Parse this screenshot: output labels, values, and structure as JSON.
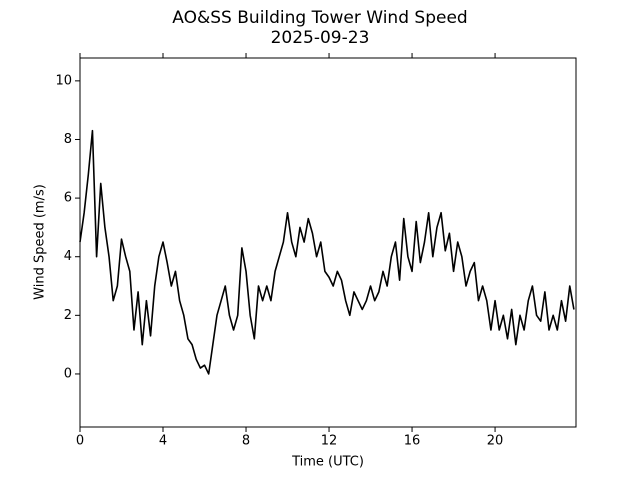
{
  "chart_data": {
    "type": "line",
    "title": "AO&SS Building Tower Wind Speed",
    "subtitle": "2025-09-23",
    "x_label": "Time (UTC)",
    "y_label": "Wind Speed (m/s)",
    "x": [
      0,
      0.2,
      0.4,
      0.6,
      0.8,
      1,
      1.2,
      1.4,
      1.6,
      1.8,
      2,
      2.2,
      2.4,
      2.6,
      2.8,
      3,
      3.2,
      3.4,
      3.6,
      3.8,
      4,
      4.2,
      4.4,
      4.6,
      4.8,
      5,
      5.2,
      5.4,
      5.6,
      5.8,
      6,
      6.2,
      6.4,
      6.6,
      6.8,
      7,
      7.2,
      7.4,
      7.6,
      7.8,
      8,
      8.2,
      8.4,
      8.6,
      8.8,
      9,
      9.2,
      9.4,
      9.6,
      9.8,
      10,
      10.2,
      10.4,
      10.6,
      10.8,
      11,
      11.2,
      11.4,
      11.6,
      11.8,
      12,
      12.2,
      12.4,
      12.6,
      12.8,
      13,
      13.2,
      13.4,
      13.6,
      13.8,
      14,
      14.2,
      14.4,
      14.6,
      14.8,
      15,
      15.2,
      15.4,
      15.6,
      15.8,
      16,
      16.2,
      16.4,
      16.6,
      16.8,
      17,
      17.2,
      17.4,
      17.6,
      17.8,
      18,
      18.2,
      18.4,
      18.6,
      18.8,
      19,
      19.2,
      19.4,
      19.6,
      19.8,
      20,
      20.2,
      20.4,
      20.6,
      20.8,
      21,
      21.2,
      21.4,
      21.6,
      21.8,
      22,
      22.2,
      22.4,
      22.6,
      22.8,
      23,
      23.2,
      23.4,
      23.6,
      23.8
    ],
    "series": [
      {
        "color": "#000000",
        "values": [
          4.5,
          5.5,
          6.8,
          8.3,
          4.0,
          6.5,
          5.0,
          4.0,
          2.5,
          3.0,
          4.6,
          4.0,
          3.5,
          1.5,
          2.8,
          1.0,
          2.5,
          1.3,
          3.0,
          4.0,
          4.5,
          3.8,
          3.0,
          3.5,
          2.5,
          2.0,
          1.2,
          1.0,
          0.5,
          0.2,
          0.3,
          0.0,
          1.0,
          2.0,
          2.5,
          3.0,
          2.0,
          1.5,
          2.0,
          4.3,
          3.5,
          2.0,
          1.2,
          3.0,
          2.5,
          3.0,
          2.5,
          3.5,
          4.0,
          4.5,
          5.5,
          4.5,
          4.0,
          5.0,
          4.5,
          5.3,
          4.8,
          4.0,
          4.5,
          3.5,
          3.3,
          3.0,
          3.5,
          3.2,
          2.5,
          2.0,
          2.8,
          2.5,
          2.2,
          2.5,
          3.0,
          2.5,
          2.8,
          3.5,
          3.0,
          4.0,
          4.5,
          3.2,
          5.3,
          4.0,
          3.5,
          5.2,
          3.8,
          4.5,
          5.5,
          4.0,
          5.0,
          5.5,
          4.2,
          4.8,
          3.5,
          4.5,
          4.0,
          3.0,
          3.5,
          3.8,
          2.5,
          3.0,
          2.5,
          1.5,
          2.5,
          1.5,
          2.0,
          1.2,
          2.2,
          1.0,
          2.0,
          1.5,
          2.5,
          3.0,
          2.0,
          1.8,
          2.8,
          1.5,
          2.0,
          1.5,
          2.5,
          1.8,
          3.0,
          2.2
        ]
      }
    ],
    "xlim": [
      0,
      23.9
    ],
    "xticks": [
      0,
      4,
      8,
      12,
      16,
      20
    ],
    "ylim": [
      -1.81,
      10.78
    ],
    "yticks": [
      0,
      2,
      4,
      6,
      8,
      10
    ],
    "grid": false
  }
}
